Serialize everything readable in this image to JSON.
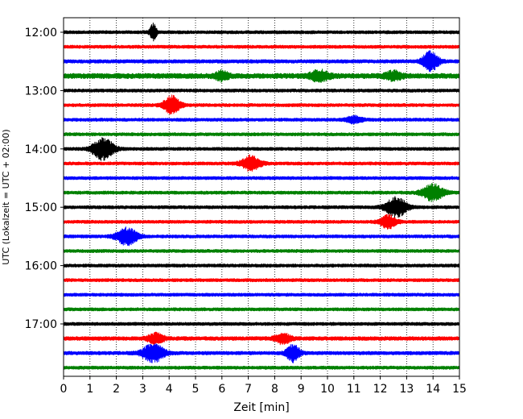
{
  "chart_data": {
    "type": "line",
    "title": "",
    "xlabel": "Zeit  [min]",
    "ylabel": "UTC (Lokalzeit = UTC + 02:00)",
    "xlim": [
      0,
      15
    ],
    "x_ticks": [
      "0",
      "1",
      "2",
      "3",
      "4",
      "5",
      "6",
      "7",
      "8",
      "9",
      "10",
      "11",
      "12",
      "13",
      "14",
      "15"
    ],
    "y_ticks": [
      {
        "label": "12:00",
        "row": 0
      },
      {
        "label": "13:00",
        "row": 4
      },
      {
        "label": "14:00",
        "row": 8
      },
      {
        "label": "15:00",
        "row": 12
      },
      {
        "label": "16:00",
        "row": 16
      },
      {
        "label": "17:00",
        "row": 20
      }
    ],
    "row_minutes": 15,
    "start_time": "12:00",
    "grid": "vertical dotted",
    "series_colors": [
      "#000000",
      "#ff0000",
      "#0000ff",
      "#008000"
    ],
    "rows": [
      {
        "time": "12:00",
        "color": "#000000",
        "noise": 1.0,
        "events": [
          {
            "t": 3.4,
            "amp": 10,
            "dur": 0.25
          }
        ]
      },
      {
        "time": "12:15",
        "color": "#ff0000",
        "noise": 1.0,
        "events": []
      },
      {
        "time": "12:30",
        "color": "#0000ff",
        "noise": 1.1,
        "events": [
          {
            "t": 13.9,
            "amp": 12,
            "dur": 0.6
          }
        ]
      },
      {
        "time": "12:45",
        "color": "#008000",
        "noise": 1.6,
        "events": [
          {
            "t": 6.0,
            "amp": 5,
            "dur": 0.5
          },
          {
            "t": 9.7,
            "amp": 6,
            "dur": 0.7
          },
          {
            "t": 12.5,
            "amp": 5,
            "dur": 0.6
          }
        ]
      },
      {
        "time": "13:00",
        "color": "#000000",
        "noise": 1.0,
        "events": []
      },
      {
        "time": "13:15",
        "color": "#ff0000",
        "noise": 1.0,
        "events": [
          {
            "t": 4.1,
            "amp": 11,
            "dur": 0.6
          }
        ]
      },
      {
        "time": "13:30",
        "color": "#0000ff",
        "noise": 1.0,
        "events": [
          {
            "t": 11.0,
            "amp": 4,
            "dur": 0.6
          }
        ]
      },
      {
        "time": "13:45",
        "color": "#008000",
        "noise": 1.0,
        "events": []
      },
      {
        "time": "14:00",
        "color": "#000000",
        "noise": 1.0,
        "events": [
          {
            "t": 1.5,
            "amp": 13,
            "dur": 0.8
          }
        ]
      },
      {
        "time": "14:15",
        "color": "#ff0000",
        "noise": 1.0,
        "events": [
          {
            "t": 7.1,
            "amp": 9,
            "dur": 0.7
          }
        ]
      },
      {
        "time": "14:30",
        "color": "#0000ff",
        "noise": 1.0,
        "events": []
      },
      {
        "time": "14:45",
        "color": "#008000",
        "noise": 1.0,
        "events": [
          {
            "t": 14.0,
            "amp": 10,
            "dur": 0.8
          }
        ]
      },
      {
        "time": "15:00",
        "color": "#000000",
        "noise": 1.0,
        "events": [
          {
            "t": 12.6,
            "amp": 12,
            "dur": 0.8
          }
        ]
      },
      {
        "time": "15:15",
        "color": "#ff0000",
        "noise": 1.0,
        "events": [
          {
            "t": 12.3,
            "amp": 8,
            "dur": 0.6
          }
        ]
      },
      {
        "time": "15:30",
        "color": "#0000ff",
        "noise": 1.0,
        "events": [
          {
            "t": 2.4,
            "amp": 10,
            "dur": 0.8
          }
        ]
      },
      {
        "time": "15:45",
        "color": "#008000",
        "noise": 1.0,
        "events": []
      },
      {
        "time": "16:00",
        "color": "#000000",
        "noise": 1.0,
        "events": []
      },
      {
        "time": "16:15",
        "color": "#ff0000",
        "noise": 1.0,
        "events": []
      },
      {
        "time": "16:30",
        "color": "#0000ff",
        "noise": 1.0,
        "events": []
      },
      {
        "time": "16:45",
        "color": "#008000",
        "noise": 1.0,
        "events": []
      },
      {
        "time": "17:00",
        "color": "#000000",
        "noise": 1.0,
        "events": []
      },
      {
        "time": "17:15",
        "color": "#ff0000",
        "noise": 1.2,
        "events": [
          {
            "t": 3.5,
            "amp": 6,
            "dur": 0.6
          },
          {
            "t": 8.3,
            "amp": 6,
            "dur": 0.6
          }
        ]
      },
      {
        "time": "17:30",
        "color": "#0000ff",
        "noise": 1.1,
        "events": [
          {
            "t": 3.4,
            "amp": 11,
            "dur": 0.8
          },
          {
            "t": 8.7,
            "amp": 10,
            "dur": 0.5
          }
        ]
      },
      {
        "time": "17:45",
        "color": "#008000",
        "noise": 1.0,
        "events": []
      }
    ]
  }
}
